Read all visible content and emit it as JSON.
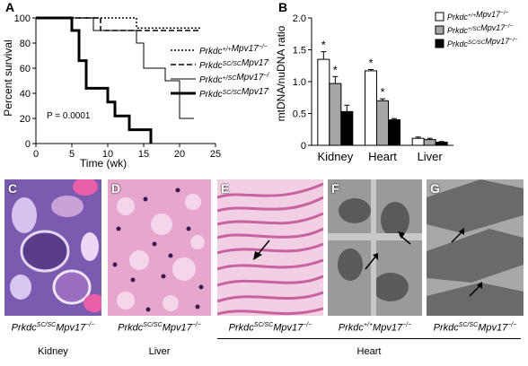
{
  "panels": {
    "a": {
      "letter": "A"
    },
    "b": {
      "letter": "B"
    },
    "c": {
      "letter": "C"
    },
    "d": {
      "letter": "D"
    },
    "e": {
      "letter": "E"
    },
    "f": {
      "letter": "F"
    },
    "g": {
      "letter": "G"
    }
  },
  "chart_data": [
    {
      "type": "line",
      "id": "survival",
      "ylabel": "Percent survival",
      "xlabel": "Time (wk)",
      "xlim": [
        0,
        25
      ],
      "ylim": [
        0,
        100
      ],
      "xticks": [
        "0",
        "5",
        "10",
        "15",
        "20",
        "25"
      ],
      "yticks": [
        "0",
        "20",
        "40",
        "60",
        "80",
        "100"
      ],
      "annotation": "P = 0.0001",
      "series": [
        {
          "name": "Prkdc+/+Mpv17−/−",
          "style": "dotted",
          "x": [
            0,
            10,
            10,
            14,
            14,
            23
          ],
          "y": [
            100,
            100,
            100,
            100,
            92,
            92
          ]
        },
        {
          "name": "PrkdcSC/SCMpv17+/+",
          "style": "dashed",
          "x": [
            0,
            9,
            9,
            23
          ],
          "y": [
            100,
            100,
            90,
            90
          ]
        },
        {
          "name": "Prkdc+/SCMpv17−/−",
          "style": "thin",
          "x": [
            0,
            8,
            8,
            14,
            14,
            15,
            15,
            18,
            18,
            20,
            20,
            22
          ],
          "y": [
            100,
            100,
            90,
            90,
            80,
            80,
            60,
            60,
            50,
            50,
            20,
            20
          ]
        },
        {
          "name": "PrkdcSC/SCMpv17−/−",
          "style": "thick",
          "x": [
            0,
            5,
            5,
            6,
            6,
            7,
            7,
            10,
            10,
            11,
            11,
            13,
            13,
            16,
            16
          ],
          "y": [
            100,
            100,
            90,
            90,
            66,
            66,
            44,
            44,
            33,
            33,
            22,
            22,
            11,
            11,
            0
          ]
        }
      ]
    },
    {
      "type": "bar",
      "id": "mtdna",
      "ylabel": "mtDNA/nuDNA ratio",
      "ylim": [
        0,
        2
      ],
      "yticks": [
        "0",
        "0.5",
        "1.0",
        "1.5",
        "2.0"
      ],
      "categories": [
        "Kidney",
        "Heart",
        "Liver"
      ],
      "series": [
        {
          "name": "Prkdc+/+Mpv17−/−",
          "color": "#ffffff",
          "values": [
            1.35,
            1.17,
            0.11
          ],
          "errors": [
            0.12,
            0.02,
            0.02
          ]
        },
        {
          "name": "Prkdc+/SCMpv17−/−",
          "color": "#a6a6a6",
          "values": [
            0.97,
            0.7,
            0.09
          ],
          "errors": [
            0.11,
            0.03,
            0.02
          ]
        },
        {
          "name": "PrkdcSC/SCMpv17−/−",
          "color": "#000000",
          "values": [
            0.53,
            0.4,
            0.05
          ],
          "errors": [
            0.1,
            0.02,
            0.01
          ]
        }
      ],
      "significance": [
        {
          "category": "Kidney",
          "series": 0,
          "mark": "*"
        },
        {
          "category": "Kidney",
          "series": 1,
          "mark": "*"
        },
        {
          "category": "Heart",
          "series": 0,
          "mark": "*"
        },
        {
          "category": "Heart",
          "series": 1,
          "mark": "*"
        }
      ]
    }
  ],
  "legend_a": [
    {
      "base": "Prkdc",
      "sup1": "+/+",
      "mid": "Mpv17",
      "sup2": "−/−"
    },
    {
      "base": "Prkdc",
      "sup1": "SC/SC",
      "mid": "Mpv17",
      "sup2": "+/+"
    },
    {
      "base": "Prkdc",
      "sup1": "+/SC",
      "mid": "Mpv17",
      "sup2": "−/−"
    },
    {
      "base": "Prkdc",
      "sup1": "SC/SC",
      "mid": "Mpv17",
      "sup2": "−/−"
    }
  ],
  "legend_b": [
    {
      "base": "Prkdc",
      "sup1": "+/+",
      "mid": "Mpv17",
      "sup2": "−/−"
    },
    {
      "base": "Prkdc",
      "sup1": "+/SC",
      "mid": "Mpv17",
      "sup2": "−/−"
    },
    {
      "base": "Prkdc",
      "sup1": "SC/SC",
      "mid": "Mpv17",
      "sup2": "−/−"
    }
  ],
  "captions": {
    "c": {
      "base": "Prkdc",
      "sup1": "SC/SC",
      "mid": "Mpv17",
      "sup2": "−/−"
    },
    "d": {
      "base": "Prkdc",
      "sup1": "SC/SC",
      "mid": "Mpv17",
      "sup2": "−/−"
    },
    "e": {
      "base": "Prkdc",
      "sup1": "SC/SC",
      "mid": "Mpv17",
      "sup2": "−/−"
    },
    "f": {
      "base": "Prkdc",
      "sup1": "+/+",
      "mid": "Mpv17",
      "sup2": "−/−"
    },
    "g": {
      "base": "Prkdc",
      "sup1": "SC/SC",
      "mid": "Mpv17",
      "sup2": "−/−"
    }
  },
  "tissues": {
    "kidney": "Kidney",
    "liver": "Liver",
    "heart": "Heart"
  }
}
